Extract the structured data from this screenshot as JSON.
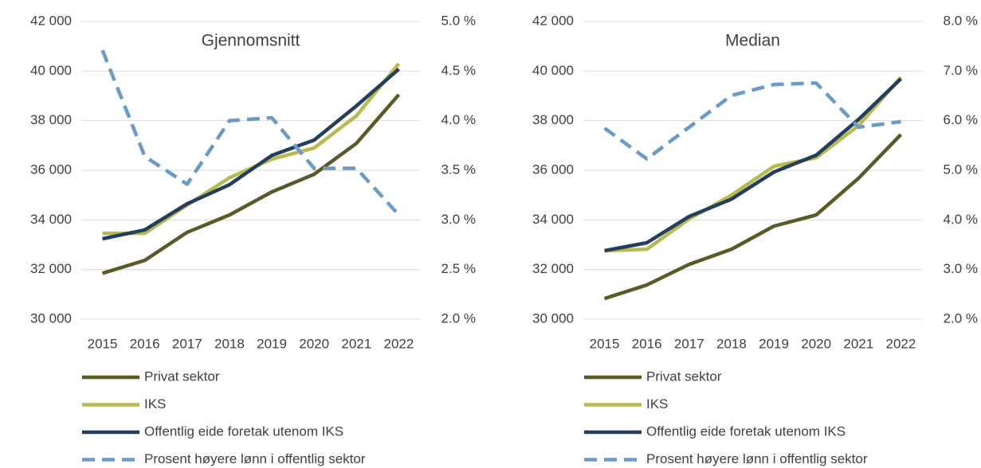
{
  "chart_data": [
    {
      "type": "line",
      "title": "Gjennomsnitt",
      "categories": [
        "2015",
        "2016",
        "2017",
        "2018",
        "2019",
        "2020",
        "2021",
        "2022"
      ],
      "series": [
        {
          "name": "Privat sektor",
          "color": "#5b5a27",
          "values": [
            31850,
            32370,
            33500,
            34200,
            35130,
            35840,
            37090,
            39050
          ]
        },
        {
          "name": "IKS",
          "color": "#b7b951",
          "values": [
            33460,
            33460,
            34600,
            35700,
            36450,
            36900,
            38200,
            40300
          ]
        },
        {
          "name": "Offentlig eide foretak utenom IKS",
          "color": "#243f5c",
          "values": [
            33240,
            33600,
            34650,
            35420,
            36600,
            37220,
            38600,
            40080
          ]
        },
        {
          "name": "Prosent høyere lønn i offentlig sektor",
          "color": "#6a9bc6",
          "axis": "y2",
          "style": "dashed",
          "values": [
            4.71,
            3.64,
            3.36,
            4.0,
            4.03,
            3.52,
            3.52,
            3.05
          ]
        }
      ],
      "ylim": [
        30000,
        42000
      ],
      "yticks": [
        {
          "value": 30000,
          "label": "30 000"
        },
        {
          "value": 32000,
          "label": "32 000"
        },
        {
          "value": 34000,
          "label": "34 000"
        },
        {
          "value": 36000,
          "label": "36 000"
        },
        {
          "value": 38000,
          "label": "38 000"
        },
        {
          "value": 40000,
          "label": "40 000"
        },
        {
          "value": 42000,
          "label": "42 000"
        }
      ],
      "y2lim": [
        2.0,
        5.0
      ],
      "y2ticks": [
        {
          "value": 2.0,
          "label": "2.0 %"
        },
        {
          "value": 2.5,
          "label": "2.5 %"
        },
        {
          "value": 3.0,
          "label": "3.0 %"
        },
        {
          "value": 3.5,
          "label": "3.5 %"
        },
        {
          "value": 4.0,
          "label": "4.0 %"
        },
        {
          "value": 4.5,
          "label": "4.5 %"
        },
        {
          "value": 5.0,
          "label": "5.0 %"
        }
      ],
      "grid": true,
      "legend": "bottom"
    },
    {
      "type": "line",
      "title": "Median",
      "categories": [
        "2015",
        "2016",
        "2017",
        "2018",
        "2019",
        "2020",
        "2021",
        "2022"
      ],
      "series": [
        {
          "name": "Privat sektor",
          "color": "#5b5a27",
          "values": [
            30830,
            31380,
            32210,
            32820,
            33750,
            34200,
            35680,
            37440
          ]
        },
        {
          "name": "IKS",
          "color": "#b7b951",
          "values": [
            32760,
            32820,
            34040,
            35000,
            36160,
            36510,
            37800,
            39750
          ]
        },
        {
          "name": "Offentlig eide foretak utenom IKS",
          "color": "#243f5c",
          "values": [
            32760,
            33080,
            34140,
            34840,
            35930,
            36610,
            38050,
            39690
          ]
        },
        {
          "name": "Prosent høyere lønn i offentlig sektor",
          "color": "#6a9bc6",
          "axis": "y2",
          "style": "dashed",
          "values": [
            5.85,
            5.23,
            5.87,
            6.51,
            6.73,
            6.76,
            5.87,
            5.98
          ]
        }
      ],
      "ylim": [
        30000,
        42000
      ],
      "yticks": [
        {
          "value": 30000,
          "label": "30 000"
        },
        {
          "value": 32000,
          "label": "32 000"
        },
        {
          "value": 34000,
          "label": "34 000"
        },
        {
          "value": 36000,
          "label": "36 000"
        },
        {
          "value": 38000,
          "label": "38 000"
        },
        {
          "value": 40000,
          "label": "40 000"
        },
        {
          "value": 42000,
          "label": "42 000"
        }
      ],
      "y2lim": [
        2.0,
        8.0
      ],
      "y2ticks": [
        {
          "value": 2.0,
          "label": "2.0 %"
        },
        {
          "value": 3.0,
          "label": "3.0 %"
        },
        {
          "value": 4.0,
          "label": "4.0 %"
        },
        {
          "value": 5.0,
          "label": "5.0 %"
        },
        {
          "value": 6.0,
          "label": "6.0 %"
        },
        {
          "value": 7.0,
          "label": "7.0 %"
        },
        {
          "value": 8.0,
          "label": "8.0 %"
        }
      ],
      "grid": true,
      "legend": "bottom"
    }
  ]
}
